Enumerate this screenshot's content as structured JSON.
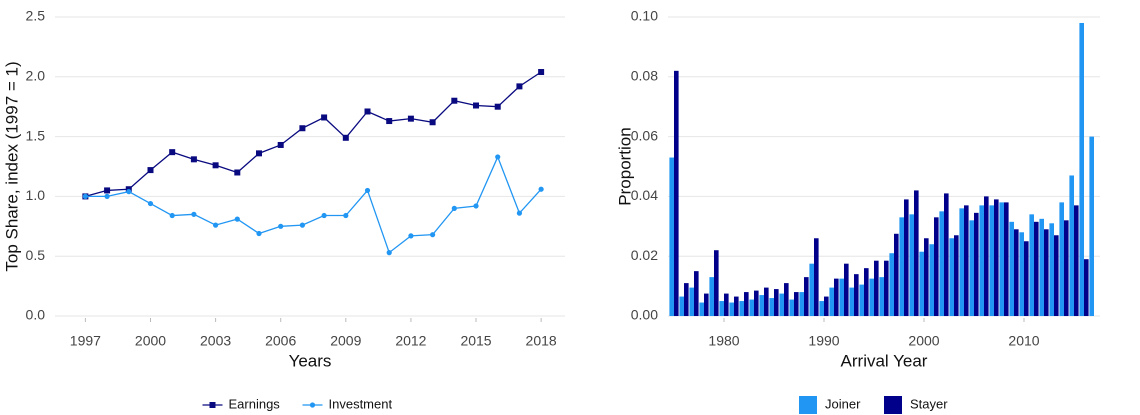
{
  "chart_data": [
    {
      "type": "line",
      "x_label": "Years",
      "y_label": "Top Share, index (1997 = 1)",
      "x": [
        1997,
        1998,
        1999,
        2000,
        2001,
        2002,
        2003,
        2004,
        2005,
        2006,
        2007,
        2008,
        2009,
        2010,
        2011,
        2012,
        2013,
        2014,
        2015,
        2016,
        2017,
        2018
      ],
      "series": [
        {
          "name": "Earnings",
          "color": "#0a0a80",
          "marker": "square",
          "values": [
            1.0,
            1.05,
            1.06,
            1.22,
            1.37,
            1.31,
            1.26,
            1.2,
            1.36,
            1.43,
            1.57,
            1.66,
            1.49,
            1.71,
            1.63,
            1.65,
            1.62,
            1.8,
            1.76,
            1.75,
            1.92,
            2.04
          ]
        },
        {
          "name": "Investment",
          "color": "#2196f3",
          "marker": "circle",
          "values": [
            1.0,
            1.0,
            1.04,
            0.94,
            0.84,
            0.85,
            0.76,
            0.81,
            0.69,
            0.75,
            0.76,
            0.84,
            0.84,
            1.05,
            0.53,
            0.67,
            0.68,
            0.9,
            0.92,
            1.33,
            0.86,
            1.06
          ]
        }
      ],
      "xlim": [
        1995.6,
        2019.1
      ],
      "xticks": [
        1997,
        2000,
        2003,
        2006,
        2009,
        2012,
        2015,
        2018
      ],
      "ylim": [
        0,
        2.5
      ],
      "yticks": [
        {
          "value": 0,
          "label": "0.0"
        },
        0.5,
        {
          "value": 1,
          "label": "1.0"
        },
        1.5,
        {
          "value": 2,
          "label": "2.0"
        },
        2.5
      ],
      "grid": true,
      "legend": "bottom"
    },
    {
      "type": "bar",
      "x_label": "Arrival Year",
      "y_label": "Proportion",
      "x": [
        1975,
        1976,
        1977,
        1978,
        1979,
        1980,
        1981,
        1982,
        1983,
        1984,
        1985,
        1986,
        1987,
        1988,
        1989,
        1990,
        1991,
        1992,
        1993,
        1994,
        1995,
        1996,
        1997,
        1998,
        1999,
        2000,
        2001,
        2002,
        2003,
        2004,
        2005,
        2006,
        2007,
        2008,
        2009,
        2010,
        2011,
        2012,
        2013,
        2014,
        2015,
        2016,
        2017
      ],
      "series": [
        {
          "name": "Joiner",
          "color": "#2196f3",
          "values": [
            0.053,
            0.0065,
            0.0095,
            0.0045,
            0.013,
            0.005,
            0.0045,
            0.005,
            0.0055,
            0.007,
            0.006,
            0.0075,
            0.0055,
            0.008,
            0.0175,
            0.005,
            0.0095,
            0.0125,
            0.0095,
            0.0105,
            0.0125,
            0.013,
            0.021,
            0.033,
            0.034,
            0.0215,
            0.024,
            0.035,
            0.026,
            0.036,
            0.032,
            0.037,
            0.037,
            0.038,
            0.0315,
            0.028,
            0.034,
            0.0325,
            0.031,
            0.038,
            0.047,
            0.098,
            0.06
          ]
        },
        {
          "name": "Stayer",
          "color": "#00008b",
          "values": [
            0.082,
            0.011,
            0.015,
            0.0075,
            0.022,
            0.0075,
            0.0065,
            0.008,
            0.0085,
            0.0095,
            0.009,
            0.011,
            0.008,
            0.013,
            0.026,
            0.0065,
            0.0125,
            0.0175,
            0.014,
            0.016,
            0.0185,
            0.0185,
            0.0275,
            0.039,
            0.042,
            0.026,
            0.033,
            0.041,
            0.027,
            0.037,
            0.0345,
            0.04,
            0.039,
            0.038,
            0.029,
            0.025,
            0.0315,
            0.029,
            0.027,
            0.032,
            0.037,
            0.019,
            null
          ]
        }
      ],
      "xlim": [
        1974.4,
        2017.6
      ],
      "xticks": [
        1980,
        1990,
        2000,
        2010
      ],
      "ylim": [
        0,
        0.1
      ],
      "yticks": [
        {
          "value": 0,
          "label": "0.00"
        },
        {
          "value": 0.02,
          "label": "0.02"
        },
        {
          "value": 0.04,
          "label": "0.04"
        },
        {
          "value": 0.06,
          "label": "0.06"
        },
        {
          "value": 0.08,
          "label": "0.08"
        },
        {
          "value": 0.1,
          "label": "0.10"
        }
      ],
      "grid": true,
      "legend": "bottom"
    }
  ]
}
